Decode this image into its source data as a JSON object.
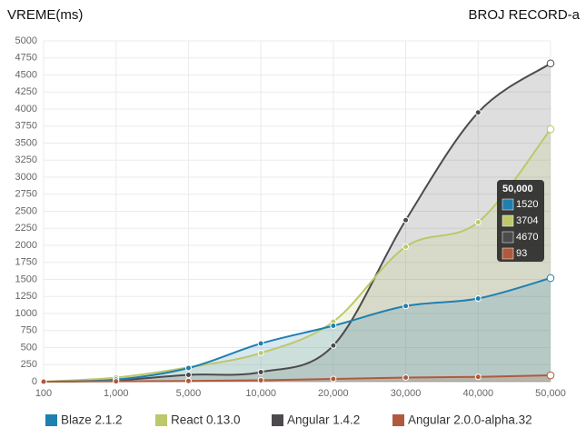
{
  "chart_data": {
    "type": "area",
    "title": "VREME(ms)",
    "x_label": "BROJ RECORD-a",
    "categories": [
      "100",
      "1,000",
      "5,000",
      "10,000",
      "20,000",
      "30,000",
      "40,000",
      "50,000"
    ],
    "series": [
      {
        "name": "Blaze 2.1.2",
        "color": "#1f80b0",
        "values": [
          0,
          30,
          200,
          560,
          820,
          1110,
          1220,
          1520
        ]
      },
      {
        "name": "React 0.13.0",
        "color": "#bcc86a",
        "values": [
          0,
          60,
          210,
          420,
          880,
          1980,
          2340,
          3704
        ]
      },
      {
        "name": "Angular 1.4.2",
        "color": "#4d4a4d",
        "values": [
          0,
          20,
          100,
          140,
          530,
          2370,
          3950,
          4670
        ]
      },
      {
        "name": "Angular 2.0.0-alpha.32",
        "color": "#b05a3d",
        "values": [
          0,
          5,
          10,
          20,
          40,
          60,
          70,
          93
        ]
      }
    ],
    "ylim": [
      0,
      5000
    ],
    "yticks": [
      0,
      250,
      500,
      750,
      1000,
      1250,
      1500,
      1750,
      2000,
      2250,
      2500,
      2750,
      3000,
      3250,
      3500,
      3750,
      4000,
      4250,
      4500,
      4750,
      5000
    ],
    "grid": true
  }
}
